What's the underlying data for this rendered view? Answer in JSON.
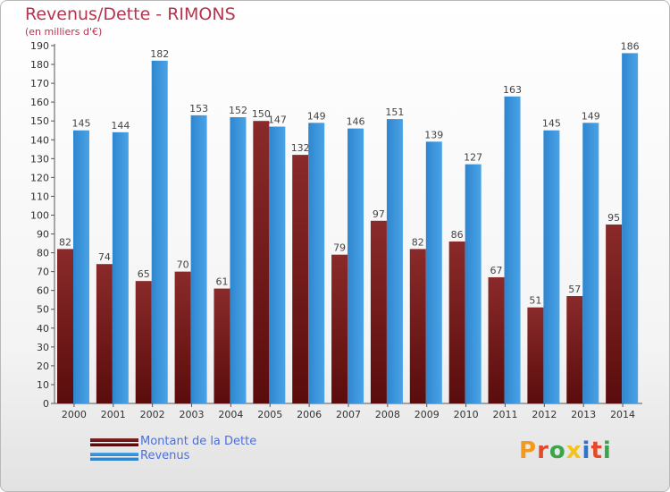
{
  "header": {
    "title": "Revenus/Dette - RIMONS",
    "subtitle": "(en milliers d'€)"
  },
  "chart_data": {
    "type": "bar",
    "categories": [
      "2000",
      "2001",
      "2002",
      "2003",
      "2004",
      "2005",
      "2006",
      "2007",
      "2008",
      "2009",
      "2010",
      "2011",
      "2012",
      "2013",
      "2014"
    ],
    "series": [
      {
        "name": "Montant de la Dette",
        "color": "#7a1f1f",
        "values": [
          82,
          74,
          65,
          70,
          61,
          150,
          132,
          79,
          97,
          82,
          86,
          67,
          51,
          57,
          95
        ]
      },
      {
        "name": "Revenus",
        "color": "#3d97dc",
        "values": [
          145,
          144,
          182,
          153,
          152,
          147,
          149,
          146,
          151,
          139,
          127,
          163,
          145,
          149,
          186
        ]
      }
    ],
    "ylim": [
      0,
      190
    ],
    "ytick_step": 10,
    "grid": false,
    "legend_position": "bottom-left"
  },
  "legend": {
    "items": [
      {
        "label": "Montant de la Dette",
        "color": "#7a1f1f"
      },
      {
        "label": "Revenus",
        "color": "#3d97dc"
      }
    ]
  },
  "logo": {
    "text": "Proxiti"
  }
}
